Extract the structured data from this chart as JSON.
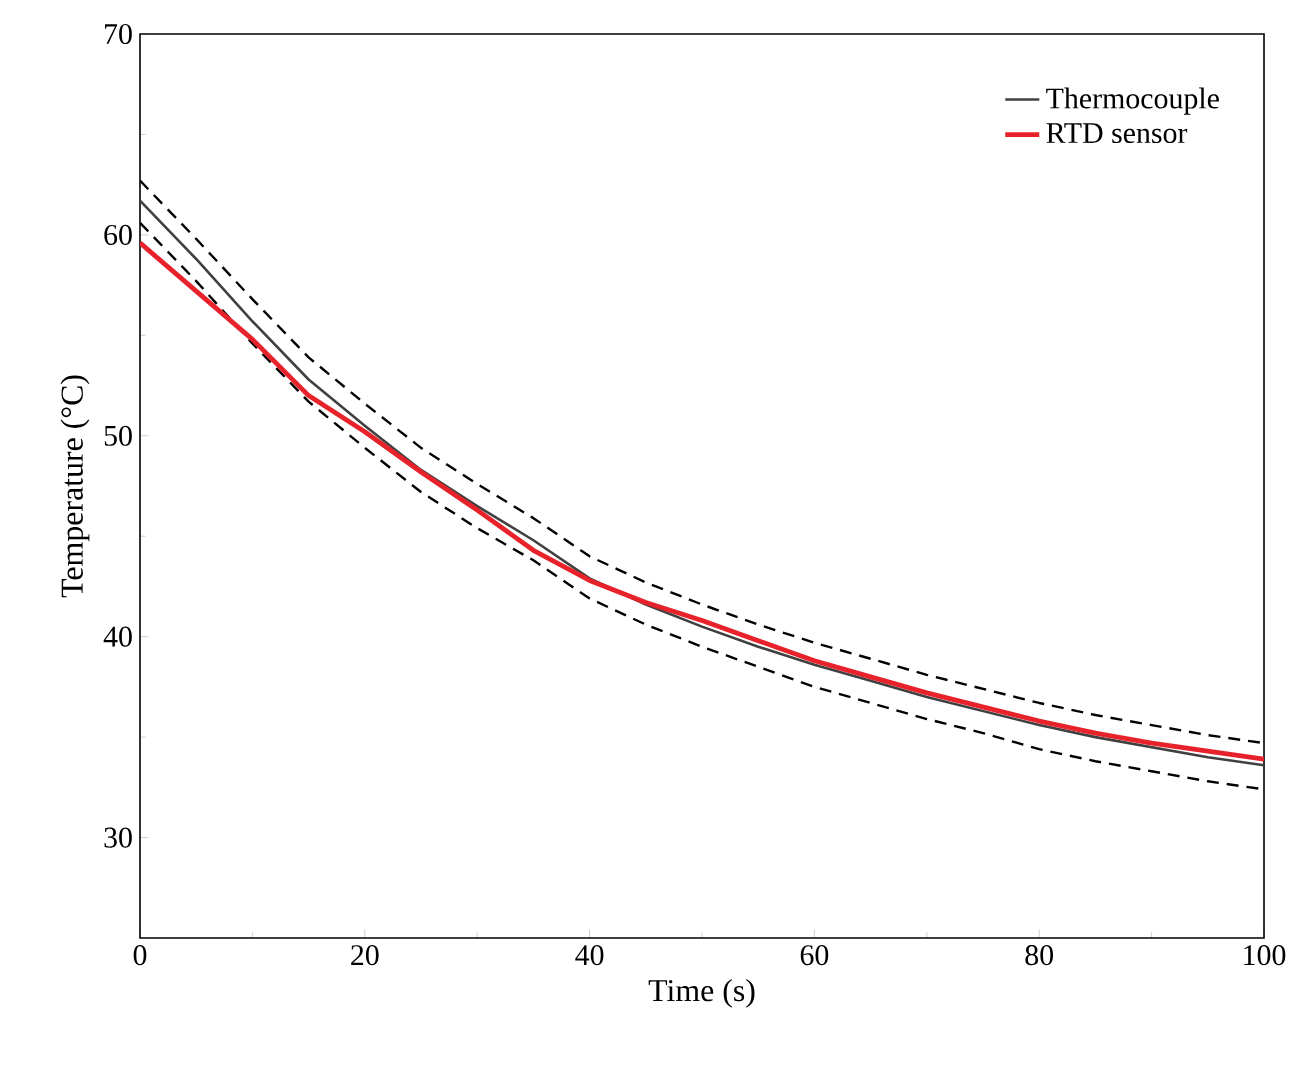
{
  "chart_data": {
    "type": "line",
    "xlabel": "Time (s)",
    "ylabel": "Temperature (°C)",
    "xlim": [
      0,
      100
    ],
    "ylim": [
      25,
      70
    ],
    "xticks": [
      0,
      20,
      40,
      60,
      80,
      100
    ],
    "yticks": [
      30,
      40,
      50,
      60,
      70
    ],
    "legend": "top right",
    "grid": false,
    "x": [
      0,
      5,
      10,
      15,
      20,
      25,
      30,
      35,
      40,
      45,
      50,
      55,
      60,
      65,
      70,
      75,
      80,
      85,
      90,
      95,
      100
    ],
    "series": [
      {
        "color": "#000000",
        "line_style": "dashed",
        "values": [
          62.7,
          59.8,
          56.8,
          53.9,
          51.6,
          49.4,
          47.6,
          45.9,
          44.0,
          42.7,
          41.6,
          40.6,
          39.7,
          38.9,
          38.1,
          37.4,
          36.7,
          36.1,
          35.6,
          35.1,
          34.7
        ]
      },
      {
        "color": "#000000",
        "line_style": "dashed",
        "values": [
          60.6,
          57.7,
          54.6,
          51.7,
          49.4,
          47.2,
          45.4,
          43.8,
          41.9,
          40.6,
          39.5,
          38.5,
          37.5,
          36.7,
          35.9,
          35.2,
          34.4,
          33.8,
          33.3,
          32.8,
          32.4
        ]
      },
      {
        "name": "Thermocouple",
        "color": "#404040",
        "values": [
          61.7,
          58.8,
          55.7,
          52.8,
          50.5,
          48.3,
          46.5,
          44.8,
          42.9,
          41.6,
          40.5,
          39.5,
          38.6,
          37.8,
          37.0,
          36.3,
          35.6,
          35.0,
          34.5,
          34.0,
          33.6
        ]
      },
      {
        "name": "RTD sensor",
        "color": "#e8222a",
        "values": [
          59.6,
          57.2,
          54.8,
          52.0,
          50.2,
          48.2,
          46.3,
          44.3,
          42.8,
          41.7,
          40.8,
          39.8,
          38.8,
          38.0,
          37.2,
          36.5,
          35.8,
          35.2,
          34.7,
          34.3,
          33.9
        ]
      }
    ]
  }
}
